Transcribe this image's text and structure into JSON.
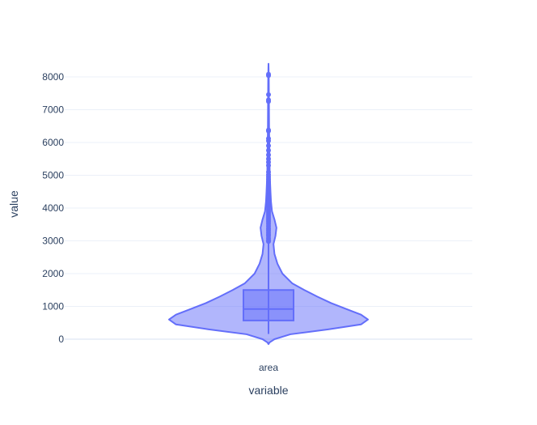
{
  "chart_data": {
    "type": "violin",
    "title": "",
    "xlabel": "variable",
    "ylabel": "value",
    "categories": [
      "area"
    ],
    "ylim": [
      -150,
      8450
    ],
    "yticks": [
      0,
      1000,
      2000,
      3000,
      4000,
      5000,
      6000,
      7000,
      8000
    ],
    "ytick_labels": [
      "0",
      "1000",
      "2000",
      "3000",
      "4000",
      "5000",
      "6000",
      "7000",
      "8000"
    ],
    "grid": true,
    "legend": "none",
    "box": {
      "q1": 570,
      "median": 920,
      "q3": 1500,
      "whisker_low": 160,
      "whisker_high": 2950
    },
    "density_profile": [
      {
        "value": -150,
        "width": 0.0
      },
      {
        "value": -100,
        "width": 0.01
      },
      {
        "value": 0,
        "width": 0.06
      },
      {
        "value": 150,
        "width": 0.22
      },
      {
        "value": 300,
        "width": 0.6
      },
      {
        "value": 450,
        "width": 0.93
      },
      {
        "value": 600,
        "width": 1.0
      },
      {
        "value": 750,
        "width": 0.93
      },
      {
        "value": 900,
        "width": 0.8
      },
      {
        "value": 1100,
        "width": 0.63
      },
      {
        "value": 1300,
        "width": 0.49
      },
      {
        "value": 1500,
        "width": 0.36
      },
      {
        "value": 1700,
        "width": 0.24
      },
      {
        "value": 2000,
        "width": 0.14
      },
      {
        "value": 2300,
        "width": 0.09
      },
      {
        "value": 2600,
        "width": 0.06
      },
      {
        "value": 2900,
        "width": 0.05
      },
      {
        "value": 3150,
        "width": 0.07
      },
      {
        "value": 3400,
        "width": 0.08
      },
      {
        "value": 3650,
        "width": 0.06
      },
      {
        "value": 3900,
        "width": 0.035
      },
      {
        "value": 4200,
        "width": 0.025
      },
      {
        "value": 4500,
        "width": 0.02
      },
      {
        "value": 5000,
        "width": 0.013
      },
      {
        "value": 5500,
        "width": 0.01
      },
      {
        "value": 6000,
        "width": 0.008
      },
      {
        "value": 6500,
        "width": 0.006
      },
      {
        "value": 7000,
        "width": 0.005
      },
      {
        "value": 7500,
        "width": 0.004
      },
      {
        "value": 8000,
        "width": 0.003
      },
      {
        "value": 8400,
        "width": 0.0
      }
    ],
    "outliers": [
      2980,
      3020,
      3080,
      3150,
      3200,
      3260,
      3320,
      3380,
      3450,
      3520,
      3580,
      3640,
      3700,
      3760,
      3820,
      3880,
      3940,
      4000,
      4050,
      4100,
      4160,
      4220,
      4280,
      4350,
      4420,
      4500,
      4580,
      4650,
      4720,
      4800,
      4880,
      4950,
      5020,
      5100,
      5300,
      5400,
      5500,
      5620,
      5760,
      5900,
      6050,
      6120,
      6350,
      6380,
      7250,
      7300,
      7460,
      8040,
      8080
    ],
    "colors": {
      "violin_fill": "#636efa",
      "violin_line": "#636efa",
      "grid": "#ebf0f8",
      "zeroline": "#ebf0f8",
      "text": "#2a3f5f"
    }
  }
}
